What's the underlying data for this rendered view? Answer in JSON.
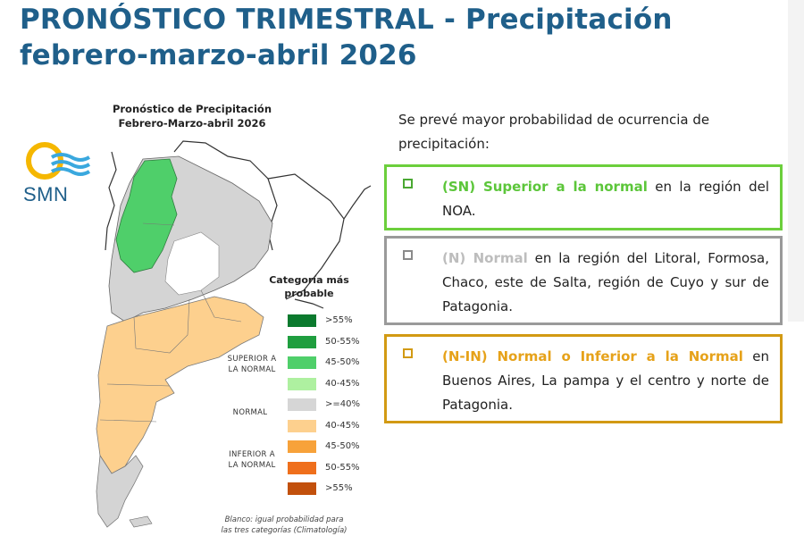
{
  "header": {
    "title_line1": "PRONÓSTICO TRIMESTRAL - Precipitación",
    "title_line2": "febrero-marzo-abril 2026"
  },
  "map": {
    "title_line1": "Pronóstico de Precipitación",
    "title_line2": "Febrero-Marzo-abril 2026",
    "logo_text": "SMN"
  },
  "legend": {
    "title_line1": "Categoría más",
    "title_line2": "probable",
    "items": [
      {
        "label": ">55%",
        "color": "#0b7a2e"
      },
      {
        "label": "50-55%",
        "color": "#1f9e3f"
      },
      {
        "label": "45-50%",
        "color": "#4fcf6a"
      },
      {
        "label": "40-45%",
        "color": "#aef0a0"
      },
      {
        "label": ">=40%",
        "color": "#d6d6d6"
      },
      {
        "label": "40-45%",
        "color": "#fdd08e"
      },
      {
        "label": "45-50%",
        "color": "#f7a23a"
      },
      {
        "label": "50-55%",
        "color": "#ef6f1c"
      },
      {
        "label": ">55%",
        "color": "#c2500c"
      }
    ],
    "cat_superior_1": "SUPERIOR A",
    "cat_superior_2": "LA NORMAL",
    "cat_normal": "NORMAL",
    "cat_inferior_1": "INFERIOR A",
    "cat_inferior_2": "LA NORMAL",
    "note_line1": "Blanco: igual probabilidad para",
    "note_line2": "las tres categorías (Climatología)"
  },
  "forecast": {
    "intro": "Se prevé mayor probabilidad de ocurrencia de precipitación:",
    "boxes": [
      {
        "border": "#6ccf3c",
        "check": "#4aa832",
        "highlight": "#5cc63a",
        "highlight_text": "(SN) Superior a la normal",
        "rest_text": " en la región del NOA."
      },
      {
        "border": "#9a9a9a",
        "check": "#8a8a8a",
        "highlight": "#bdbdbd",
        "highlight_text": "(N) Normal",
        "rest_text": " en la región del Litoral, Formosa, Chaco, este de Salta, región de Cuyo y sur de Patagonia."
      },
      {
        "border": "#d29a13",
        "check": "#d29a13",
        "highlight": "#e6a21a",
        "highlight_text": "(N-IN) Normal o Inferior a la Normal",
        "rest_text": " en Buenos Aires, La pampa y el centro y norte de Patagonia."
      }
    ]
  }
}
